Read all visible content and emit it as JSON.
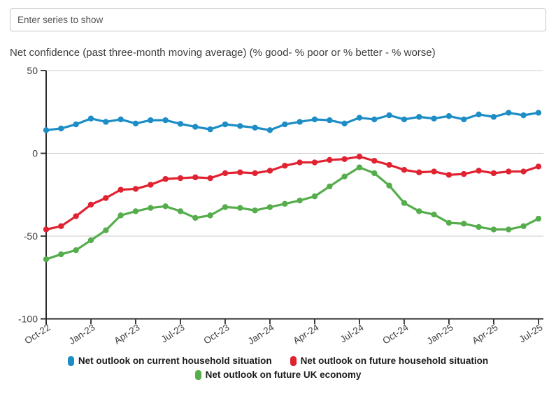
{
  "search": {
    "placeholder": "Enter series to show"
  },
  "chart_data": {
    "type": "line",
    "title": "Net confidence (past three-month moving average) (% good- % poor or % better - % worse)",
    "x": [
      "Oct-22",
      "Nov-22",
      "Dec-22",
      "Jan-23",
      "Feb-23",
      "Mar-23",
      "Apr-23",
      "May-23",
      "Jun-23",
      "Jul-23",
      "Aug-23",
      "Sep-23",
      "Oct-23",
      "Nov-23",
      "Dec-23",
      "Jan-24",
      "Feb-24",
      "Mar-24",
      "Apr-24",
      "May-24",
      "Jun-24",
      "Jul-24",
      "Aug-24",
      "Sep-24",
      "Oct-24",
      "Nov-24",
      "Dec-24",
      "Jan-25",
      "Feb-25",
      "Mar-25",
      "Apr-25",
      "May-25",
      "Jun-25",
      "Jul-25"
    ],
    "x_tick_every": 3,
    "x_tick_labels": [
      "Oct-22",
      "Jan-23",
      "Apr-23",
      "Jul-23",
      "Oct-23",
      "Jan-24",
      "Apr-24",
      "Jul-24",
      "Oct-24",
      "Jan-25",
      "Apr-25",
      "Jul-25"
    ],
    "y_ticks": [
      50,
      0,
      -50,
      -100
    ],
    "ylim": [
      -100,
      50
    ],
    "grid": "horizontal",
    "legend_position": "bottom",
    "colors": {
      "axis": "#2b2b2b",
      "gridline": "#cccccc",
      "tick_label": "#3d3d3d"
    },
    "series": [
      {
        "name": "Net outlook on current household situation",
        "color": "#1d8dc6",
        "values": [
          14,
          15,
          17.5,
          21,
          19,
          20.5,
          18,
          20,
          20,
          17.8,
          16,
          14.5,
          17.5,
          16.5,
          15.5,
          14,
          17.5,
          19,
          20.5,
          20,
          18,
          21.5,
          20.5,
          23,
          20.5,
          22,
          21,
          22.5,
          20.5,
          23.5,
          22,
          24.5,
          23,
          24.5
        ]
      },
      {
        "name": "Net outlook on future household situation",
        "color": "#e02231",
        "values": [
          -46,
          -44,
          -38,
          -31,
          -27,
          -22,
          -21.5,
          -19,
          -15.5,
          -15,
          -14.5,
          -15,
          -12,
          -11.5,
          -12,
          -10.5,
          -7.5,
          -5.5,
          -5.5,
          -4,
          -3.5,
          -2,
          -4.5,
          -7,
          -10,
          -11.5,
          -11,
          -13,
          -12.5,
          -10.5,
          -12,
          -11,
          -11,
          -8
        ]
      },
      {
        "name": "Net outlook on future UK economy",
        "color": "#55ad4c",
        "values": [
          -64,
          -61,
          -58.5,
          -52.5,
          -46.5,
          -37.5,
          -35,
          -33,
          -32,
          -35,
          -39,
          -37.5,
          -32.5,
          -33,
          -34.5,
          -32.5,
          -30.5,
          -28.5,
          -26,
          -20,
          -14,
          -8.5,
          -12,
          -19.5,
          -30,
          -35,
          -37,
          -42,
          -42.5,
          -44.5,
          -46,
          -46,
          -44,
          -39.5
        ]
      }
    ]
  }
}
